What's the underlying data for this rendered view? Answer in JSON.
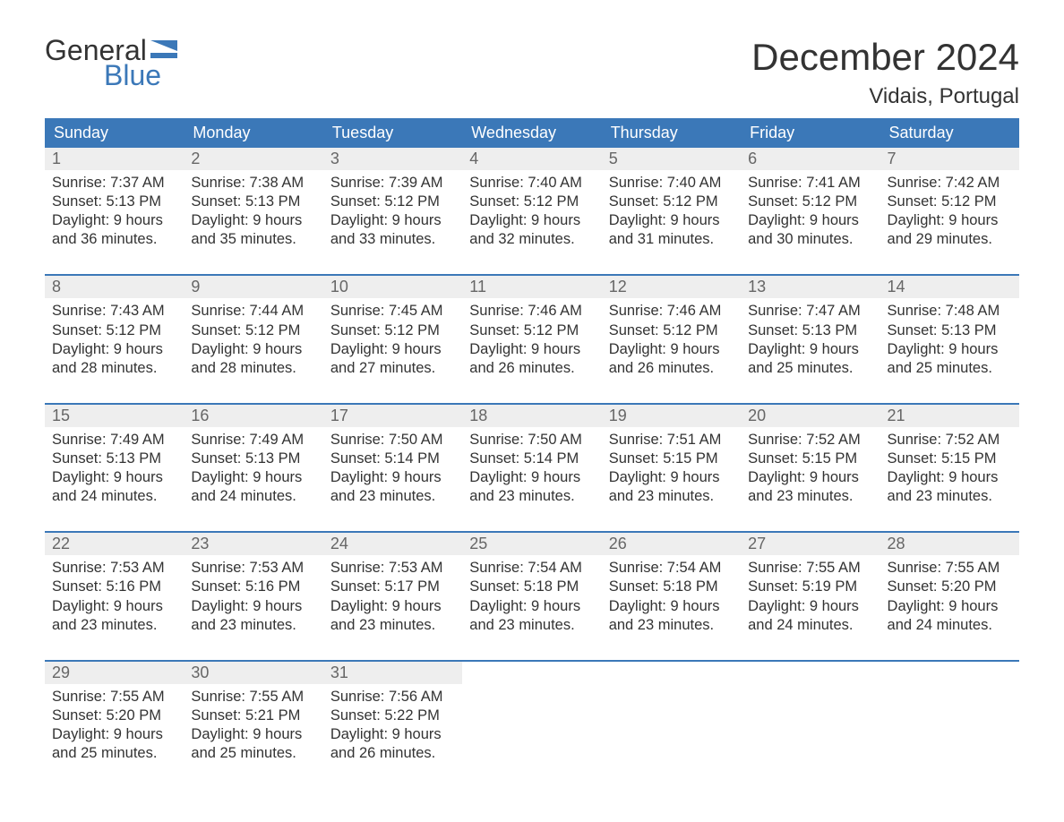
{
  "brand": {
    "line1": "General",
    "line2": "Blue"
  },
  "title": "December 2024",
  "location": "Vidais, Portugal",
  "colors": {
    "header_bg": "#3b78b8",
    "header_text": "#ffffff",
    "daynum_bg": "#eeeeee",
    "daynum_text": "#666666",
    "border": "#3b78b8",
    "logo_accent": "#3b78b8",
    "body_text": "#333333"
  },
  "layout": {
    "type": "calendar",
    "columns": 7,
    "rows": 5,
    "fontsize_body": 16.5,
    "fontsize_title": 42,
    "fontsize_location": 24,
    "fontsize_weekday": 18,
    "fontsize_daynum": 18
  },
  "weekdays": [
    "Sunday",
    "Monday",
    "Tuesday",
    "Wednesday",
    "Thursday",
    "Friday",
    "Saturday"
  ],
  "days": [
    {
      "n": "1",
      "sunrise": "Sunrise: 7:37 AM",
      "sunset": "Sunset: 5:13 PM",
      "dl1": "Daylight: 9 hours",
      "dl2": "and 36 minutes."
    },
    {
      "n": "2",
      "sunrise": "Sunrise: 7:38 AM",
      "sunset": "Sunset: 5:13 PM",
      "dl1": "Daylight: 9 hours",
      "dl2": "and 35 minutes."
    },
    {
      "n": "3",
      "sunrise": "Sunrise: 7:39 AM",
      "sunset": "Sunset: 5:12 PM",
      "dl1": "Daylight: 9 hours",
      "dl2": "and 33 minutes."
    },
    {
      "n": "4",
      "sunrise": "Sunrise: 7:40 AM",
      "sunset": "Sunset: 5:12 PM",
      "dl1": "Daylight: 9 hours",
      "dl2": "and 32 minutes."
    },
    {
      "n": "5",
      "sunrise": "Sunrise: 7:40 AM",
      "sunset": "Sunset: 5:12 PM",
      "dl1": "Daylight: 9 hours",
      "dl2": "and 31 minutes."
    },
    {
      "n": "6",
      "sunrise": "Sunrise: 7:41 AM",
      "sunset": "Sunset: 5:12 PM",
      "dl1": "Daylight: 9 hours",
      "dl2": "and 30 minutes."
    },
    {
      "n": "7",
      "sunrise": "Sunrise: 7:42 AM",
      "sunset": "Sunset: 5:12 PM",
      "dl1": "Daylight: 9 hours",
      "dl2": "and 29 minutes."
    },
    {
      "n": "8",
      "sunrise": "Sunrise: 7:43 AM",
      "sunset": "Sunset: 5:12 PM",
      "dl1": "Daylight: 9 hours",
      "dl2": "and 28 minutes."
    },
    {
      "n": "9",
      "sunrise": "Sunrise: 7:44 AM",
      "sunset": "Sunset: 5:12 PM",
      "dl1": "Daylight: 9 hours",
      "dl2": "and 28 minutes."
    },
    {
      "n": "10",
      "sunrise": "Sunrise: 7:45 AM",
      "sunset": "Sunset: 5:12 PM",
      "dl1": "Daylight: 9 hours",
      "dl2": "and 27 minutes."
    },
    {
      "n": "11",
      "sunrise": "Sunrise: 7:46 AM",
      "sunset": "Sunset: 5:12 PM",
      "dl1": "Daylight: 9 hours",
      "dl2": "and 26 minutes."
    },
    {
      "n": "12",
      "sunrise": "Sunrise: 7:46 AM",
      "sunset": "Sunset: 5:12 PM",
      "dl1": "Daylight: 9 hours",
      "dl2": "and 26 minutes."
    },
    {
      "n": "13",
      "sunrise": "Sunrise: 7:47 AM",
      "sunset": "Sunset: 5:13 PM",
      "dl1": "Daylight: 9 hours",
      "dl2": "and 25 minutes."
    },
    {
      "n": "14",
      "sunrise": "Sunrise: 7:48 AM",
      "sunset": "Sunset: 5:13 PM",
      "dl1": "Daylight: 9 hours",
      "dl2": "and 25 minutes."
    },
    {
      "n": "15",
      "sunrise": "Sunrise: 7:49 AM",
      "sunset": "Sunset: 5:13 PM",
      "dl1": "Daylight: 9 hours",
      "dl2": "and 24 minutes."
    },
    {
      "n": "16",
      "sunrise": "Sunrise: 7:49 AM",
      "sunset": "Sunset: 5:13 PM",
      "dl1": "Daylight: 9 hours",
      "dl2": "and 24 minutes."
    },
    {
      "n": "17",
      "sunrise": "Sunrise: 7:50 AM",
      "sunset": "Sunset: 5:14 PM",
      "dl1": "Daylight: 9 hours",
      "dl2": "and 23 minutes."
    },
    {
      "n": "18",
      "sunrise": "Sunrise: 7:50 AM",
      "sunset": "Sunset: 5:14 PM",
      "dl1": "Daylight: 9 hours",
      "dl2": "and 23 minutes."
    },
    {
      "n": "19",
      "sunrise": "Sunrise: 7:51 AM",
      "sunset": "Sunset: 5:15 PM",
      "dl1": "Daylight: 9 hours",
      "dl2": "and 23 minutes."
    },
    {
      "n": "20",
      "sunrise": "Sunrise: 7:52 AM",
      "sunset": "Sunset: 5:15 PM",
      "dl1": "Daylight: 9 hours",
      "dl2": "and 23 minutes."
    },
    {
      "n": "21",
      "sunrise": "Sunrise: 7:52 AM",
      "sunset": "Sunset: 5:15 PM",
      "dl1": "Daylight: 9 hours",
      "dl2": "and 23 minutes."
    },
    {
      "n": "22",
      "sunrise": "Sunrise: 7:53 AM",
      "sunset": "Sunset: 5:16 PM",
      "dl1": "Daylight: 9 hours",
      "dl2": "and 23 minutes."
    },
    {
      "n": "23",
      "sunrise": "Sunrise: 7:53 AM",
      "sunset": "Sunset: 5:16 PM",
      "dl1": "Daylight: 9 hours",
      "dl2": "and 23 minutes."
    },
    {
      "n": "24",
      "sunrise": "Sunrise: 7:53 AM",
      "sunset": "Sunset: 5:17 PM",
      "dl1": "Daylight: 9 hours",
      "dl2": "and 23 minutes."
    },
    {
      "n": "25",
      "sunrise": "Sunrise: 7:54 AM",
      "sunset": "Sunset: 5:18 PM",
      "dl1": "Daylight: 9 hours",
      "dl2": "and 23 minutes."
    },
    {
      "n": "26",
      "sunrise": "Sunrise: 7:54 AM",
      "sunset": "Sunset: 5:18 PM",
      "dl1": "Daylight: 9 hours",
      "dl2": "and 23 minutes."
    },
    {
      "n": "27",
      "sunrise": "Sunrise: 7:55 AM",
      "sunset": "Sunset: 5:19 PM",
      "dl1": "Daylight: 9 hours",
      "dl2": "and 24 minutes."
    },
    {
      "n": "28",
      "sunrise": "Sunrise: 7:55 AM",
      "sunset": "Sunset: 5:20 PM",
      "dl1": "Daylight: 9 hours",
      "dl2": "and 24 minutes."
    },
    {
      "n": "29",
      "sunrise": "Sunrise: 7:55 AM",
      "sunset": "Sunset: 5:20 PM",
      "dl1": "Daylight: 9 hours",
      "dl2": "and 25 minutes."
    },
    {
      "n": "30",
      "sunrise": "Sunrise: 7:55 AM",
      "sunset": "Sunset: 5:21 PM",
      "dl1": "Daylight: 9 hours",
      "dl2": "and 25 minutes."
    },
    {
      "n": "31",
      "sunrise": "Sunrise: 7:56 AM",
      "sunset": "Sunset: 5:22 PM",
      "dl1": "Daylight: 9 hours",
      "dl2": "and 26 minutes."
    }
  ]
}
